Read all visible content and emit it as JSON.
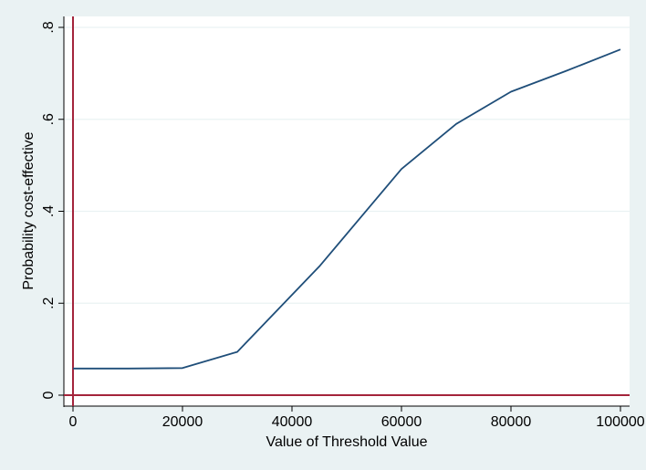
{
  "chart_data": {
    "type": "line",
    "title": "",
    "xlabel": "Value of Threshold Value",
    "ylabel": "Probability cost-effective",
    "xlim": [
      0,
      100000
    ],
    "ylim": [
      0,
      0.8
    ],
    "x_ticks": [
      0,
      20000,
      40000,
      60000,
      80000,
      100000
    ],
    "x_tick_labels": [
      "0",
      "20000",
      "40000",
      "60000",
      "80000",
      "100000"
    ],
    "y_ticks": [
      0,
      0.2,
      0.4,
      0.6,
      0.8
    ],
    "y_tick_labels": [
      "0",
      ".2",
      ".4",
      ".6",
      ".8"
    ],
    "grid": true,
    "reference_lines": {
      "x": 0,
      "y": 0,
      "color": "#a4243b"
    },
    "series": [
      {
        "color": "#1f4e79",
        "x": [
          0,
          10000,
          20000,
          30000,
          45000,
          60000,
          70000,
          80000,
          90000,
          100000
        ],
        "y": [
          0.058,
          0.058,
          0.059,
          0.094,
          0.28,
          0.492,
          0.59,
          0.66,
          0.705,
          0.752
        ]
      }
    ]
  },
  "colors": {
    "background": "#eaf2f3",
    "plot_background": "#ffffff",
    "grid": "#eaf2f3",
    "axis": "#000000"
  }
}
